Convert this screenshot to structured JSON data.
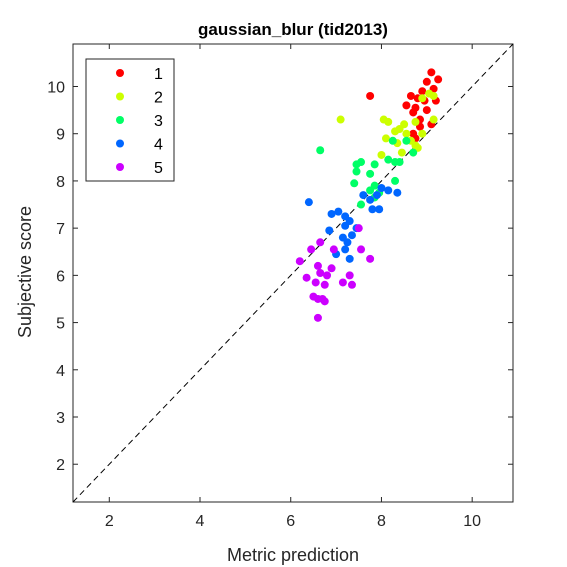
{
  "chart_data": {
    "type": "scatter",
    "title": "gaussian_blur (tid2013)",
    "xlabel": "Metric prediction",
    "ylabel": "Subjective score",
    "xlim": [
      1.2,
      10.9
    ],
    "ylim": [
      1.2,
      10.9
    ],
    "xticks": [
      2,
      4,
      6,
      8,
      10
    ],
    "yticks": [
      2,
      3,
      4,
      5,
      6,
      7,
      8,
      9,
      10
    ],
    "grid": false,
    "reference_line": "y = x (dashed)",
    "legend_position": "top-left",
    "series": [
      {
        "name": "1",
        "color": "#ff0000",
        "points": [
          [
            9.1,
            10.3
          ],
          [
            9.25,
            10.15
          ],
          [
            9.0,
            10.1
          ],
          [
            9.15,
            9.95
          ],
          [
            8.9,
            9.9
          ],
          [
            8.95,
            9.7
          ],
          [
            9.2,
            9.7
          ],
          [
            8.65,
            9.8
          ],
          [
            7.75,
            9.8
          ],
          [
            8.8,
            9.75
          ],
          [
            8.55,
            9.6
          ],
          [
            8.75,
            9.55
          ],
          [
            9.0,
            9.5
          ],
          [
            8.7,
            9.45
          ],
          [
            8.85,
            9.3
          ],
          [
            9.1,
            9.2
          ],
          [
            8.85,
            9.15
          ],
          [
            8.7,
            9.0
          ],
          [
            8.75,
            8.9
          ]
        ]
      },
      {
        "name": "2",
        "color": "#ccff00",
        "points": [
          [
            9.05,
            9.85
          ],
          [
            9.15,
            9.8
          ],
          [
            8.9,
            9.75
          ],
          [
            7.1,
            9.3
          ],
          [
            8.05,
            9.3
          ],
          [
            8.15,
            9.25
          ],
          [
            8.5,
            9.2
          ],
          [
            8.75,
            9.25
          ],
          [
            9.15,
            9.3
          ],
          [
            8.4,
            9.1
          ],
          [
            8.3,
            9.05
          ],
          [
            8.55,
            9.0
          ],
          [
            8.9,
            9.0
          ],
          [
            8.1,
            8.9
          ],
          [
            8.35,
            8.8
          ],
          [
            8.65,
            8.85
          ],
          [
            8.75,
            8.75
          ],
          [
            8.0,
            8.55
          ],
          [
            8.45,
            8.6
          ],
          [
            8.8,
            8.7
          ]
        ]
      },
      {
        "name": "3",
        "color": "#00ff66",
        "points": [
          [
            6.65,
            8.65
          ],
          [
            8.25,
            8.85
          ],
          [
            8.55,
            8.85
          ],
          [
            8.7,
            8.6
          ],
          [
            8.15,
            8.45
          ],
          [
            8.3,
            8.4
          ],
          [
            8.4,
            8.4
          ],
          [
            7.55,
            8.4
          ],
          [
            7.45,
            8.35
          ],
          [
            7.85,
            8.35
          ],
          [
            7.45,
            8.2
          ],
          [
            7.75,
            8.15
          ],
          [
            8.3,
            8.0
          ],
          [
            7.4,
            7.95
          ],
          [
            7.85,
            7.9
          ],
          [
            7.75,
            7.8
          ],
          [
            7.95,
            7.75
          ],
          [
            7.85,
            7.65
          ],
          [
            7.55,
            7.5
          ]
        ]
      },
      {
        "name": "4",
        "color": "#0066ff",
        "points": [
          [
            8.0,
            7.85
          ],
          [
            8.15,
            7.8
          ],
          [
            8.35,
            7.75
          ],
          [
            7.9,
            7.7
          ],
          [
            7.6,
            7.7
          ],
          [
            7.75,
            7.6
          ],
          [
            6.4,
            7.55
          ],
          [
            7.8,
            7.4
          ],
          [
            7.95,
            7.4
          ],
          [
            7.05,
            7.35
          ],
          [
            6.9,
            7.3
          ],
          [
            7.2,
            7.25
          ],
          [
            7.3,
            7.15
          ],
          [
            7.2,
            7.05
          ],
          [
            7.45,
            7.0
          ],
          [
            6.85,
            6.95
          ],
          [
            7.35,
            6.85
          ],
          [
            7.15,
            6.8
          ],
          [
            7.25,
            6.7
          ],
          [
            7.2,
            6.55
          ],
          [
            7.0,
            6.45
          ],
          [
            7.3,
            6.35
          ]
        ]
      },
      {
        "name": "5",
        "color": "#cc00ff",
        "points": [
          [
            7.5,
            7.0
          ],
          [
            6.65,
            6.7
          ],
          [
            6.45,
            6.55
          ],
          [
            6.95,
            6.55
          ],
          [
            7.55,
            6.55
          ],
          [
            6.2,
            6.3
          ],
          [
            7.75,
            6.35
          ],
          [
            6.6,
            6.2
          ],
          [
            6.9,
            6.15
          ],
          [
            6.65,
            6.05
          ],
          [
            6.8,
            6.0
          ],
          [
            7.3,
            6.0
          ],
          [
            6.35,
            5.95
          ],
          [
            6.55,
            5.85
          ],
          [
            7.15,
            5.85
          ],
          [
            6.75,
            5.8
          ],
          [
            7.35,
            5.8
          ],
          [
            6.5,
            5.55
          ],
          [
            6.7,
            5.5
          ],
          [
            6.6,
            5.5
          ],
          [
            6.75,
            5.45
          ],
          [
            6.6,
            5.1
          ]
        ]
      }
    ]
  }
}
